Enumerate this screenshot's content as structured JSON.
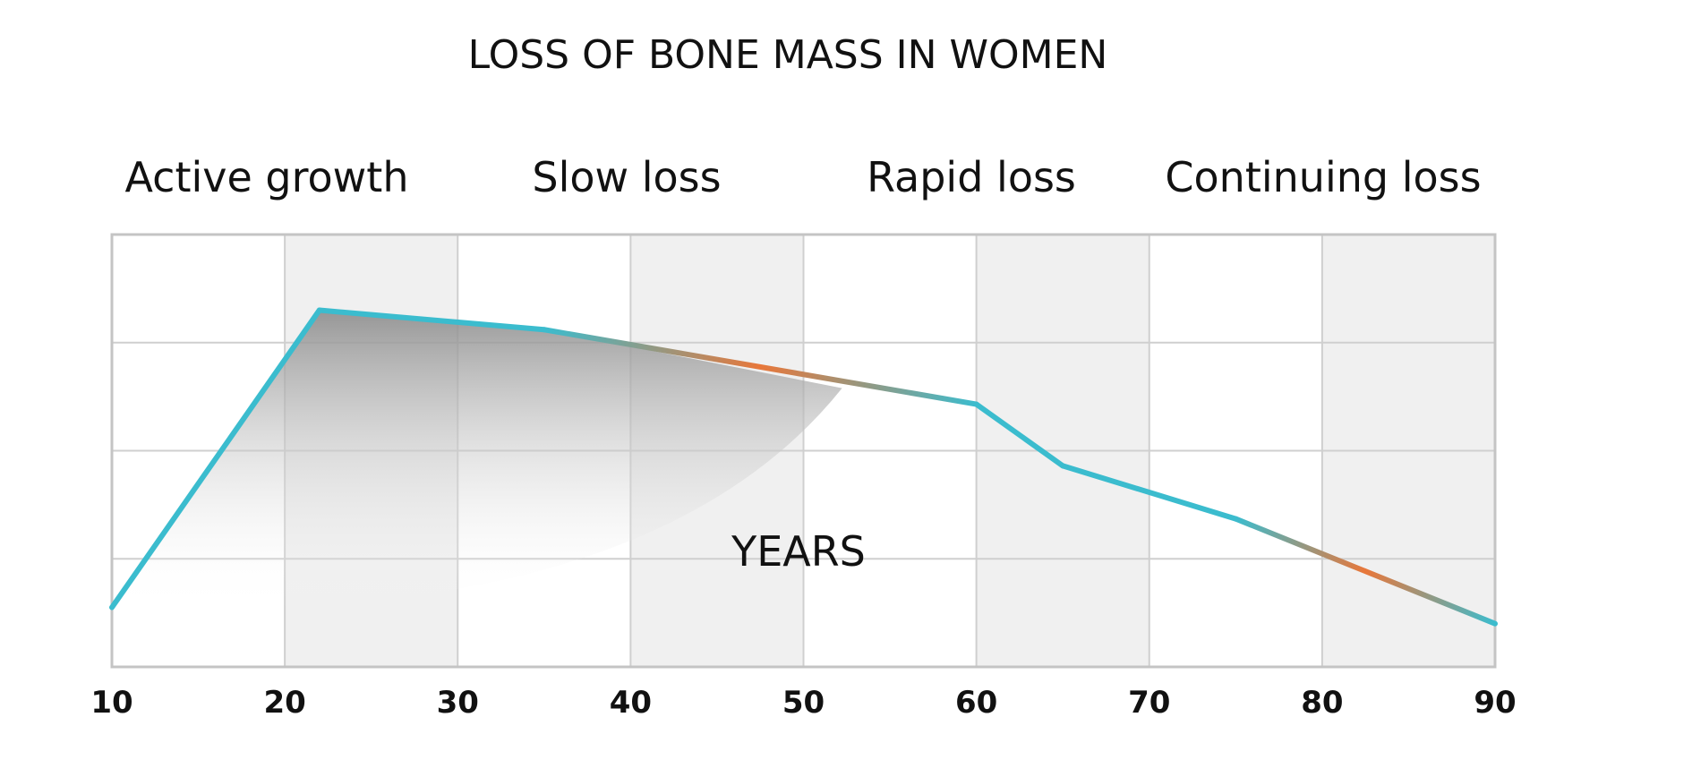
{
  "chart_data": {
    "type": "line",
    "title": "LOSS OF BONE MASS IN WOMEN",
    "xlabel": "YEARS",
    "ylabel": "",
    "phases": [
      "Active growth",
      "Slow loss",
      "Rapid loss",
      "Continuing loss"
    ],
    "x_ticks": [
      "10",
      "20",
      "30",
      "40",
      "50",
      "60",
      "70",
      "80",
      "90"
    ],
    "xlim": [
      10,
      90
    ],
    "ylim": [
      0,
      4
    ],
    "grid": true,
    "series": [
      {
        "x": [
          10,
          22,
          35,
          60,
          65,
          75,
          90
        ],
        "values": [
          0.55,
          3.3,
          3.12,
          2.43,
          1.86,
          1.37,
          0.4
        ]
      }
    ],
    "colors": {
      "line": "#3bbcce",
      "line_accent": "#e8773a",
      "grid": "#cfcfcf",
      "band": "#f0f0f0",
      "border": "#c4c4c4"
    }
  }
}
